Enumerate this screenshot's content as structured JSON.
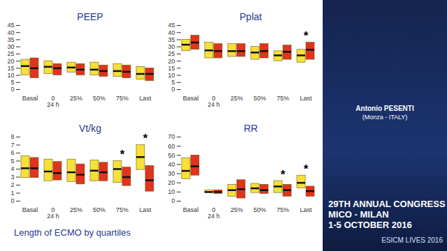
{
  "caption": "Length of ECMO by quartiles",
  "panel": {
    "speaker": "Antonio PESENTI",
    "affiliation": "(Monza - ITALY)",
    "event": [
      "29TH ANNUAL CONGRESS",
      "MICO - MILAN",
      "1-5 OCTOBER 2016"
    ],
    "brand": "ESICM LIVES 2016"
  },
  "chart_data": [
    {
      "type": "box",
      "title": "PEEP",
      "categories": [
        "Basal",
        "0\n24 h",
        "25%",
        "50%",
        "75%",
        "Last"
      ],
      "ylim": [
        0,
        45
      ],
      "yticks": [
        0,
        5,
        10,
        15,
        20,
        25,
        30,
        35,
        40,
        45
      ],
      "grid": false,
      "series": [
        {
          "color": "#f7e03a",
          "low": [
            10,
            11,
            12,
            10,
            9,
            7
          ],
          "high": [
            21,
            20,
            19,
            19,
            18,
            16
          ],
          "median": [
            16.5,
            16,
            15.5,
            14,
            13,
            11
          ]
        },
        {
          "color": "#e3321e",
          "low": [
            8,
            10,
            10,
            9,
            8,
            6
          ],
          "high": [
            22,
            18,
            18,
            17,
            17,
            15
          ],
          "median": [
            15,
            15,
            14,
            13,
            12.5,
            11
          ]
        }
      ],
      "annotations": []
    },
    {
      "type": "box",
      "title": "Pplat",
      "categories": [
        "Basal",
        "0\n24 h",
        "25%",
        "50%",
        "75%",
        "Last"
      ],
      "ylim": [
        0,
        45
      ],
      "yticks": [
        0,
        5,
        10,
        15,
        20,
        25,
        30,
        35,
        40,
        45
      ],
      "grid": false,
      "series": [
        {
          "color": "#f7e03a",
          "low": [
            27,
            22,
            23,
            21,
            20,
            19
          ],
          "high": [
            35,
            33,
            32,
            30,
            27,
            28
          ],
          "median": [
            31.5,
            27.5,
            27,
            26,
            24,
            24
          ]
        },
        {
          "color": "#e3321e",
          "low": [
            28,
            22,
            23,
            22,
            21,
            21
          ],
          "high": [
            38,
            32,
            32,
            32,
            31,
            33
          ],
          "median": [
            33,
            27,
            27,
            27,
            26.5,
            28
          ]
        }
      ],
      "annotations": [
        {
          "category": "Last",
          "text": "*"
        }
      ]
    },
    {
      "type": "box",
      "title": "Vt/kg",
      "categories": [
        "Basal",
        "0\n24 h",
        "25%",
        "50%",
        "75%",
        "Last"
      ],
      "ylim": [
        0,
        8
      ],
      "yticks": [
        0,
        1,
        2,
        3,
        4,
        5,
        6,
        7,
        8
      ],
      "grid": false,
      "series": [
        {
          "color": "#f7e03a",
          "low": [
            2.9,
            2.5,
            2.4,
            2.5,
            2.3,
            3.9
          ],
          "high": [
            5.6,
            5.2,
            5.2,
            5.1,
            5.0,
            7.0
          ],
          "median": [
            4.1,
            3.7,
            3.6,
            3.8,
            4.0,
            5.5
          ]
        },
        {
          "color": "#e3321e",
          "low": [
            2.9,
            2.6,
            2.1,
            2.5,
            1.9,
            1.2
          ],
          "high": [
            5.4,
            4.9,
            4.6,
            4.8,
            4.2,
            4.4
          ],
          "median": [
            4.1,
            3.5,
            3.3,
            3.6,
            3.0,
            2.6
          ]
        }
      ],
      "annotations": [
        {
          "category": "75%",
          "text": "*"
        },
        {
          "category": "Last",
          "text": "*"
        }
      ]
    },
    {
      "type": "box",
      "title": "RR",
      "categories": [
        "Basal",
        "0\n24 h",
        "25%",
        "50%",
        "75%",
        "Last"
      ],
      "ylim": [
        0,
        70
      ],
      "yticks": [
        0,
        10,
        20,
        30,
        40,
        50,
        60,
        70
      ],
      "grid": false,
      "series": [
        {
          "color": "#f7e03a",
          "low": [
            24,
            9,
            5,
            9,
            9,
            14
          ],
          "high": [
            47,
            12,
            18,
            19,
            22,
            28
          ],
          "median": [
            33,
            10,
            12,
            14,
            16,
            20
          ]
        },
        {
          "color": "#e3321e",
          "low": [
            28,
            8,
            3,
            8,
            5,
            5
          ],
          "high": [
            50,
            12,
            23,
            18,
            18,
            16
          ],
          "median": [
            38,
            10,
            13,
            12,
            12,
            11
          ]
        }
      ],
      "annotations": [
        {
          "category": "75%",
          "text": "*"
        },
        {
          "category": "Last",
          "text": "*"
        }
      ]
    }
  ]
}
